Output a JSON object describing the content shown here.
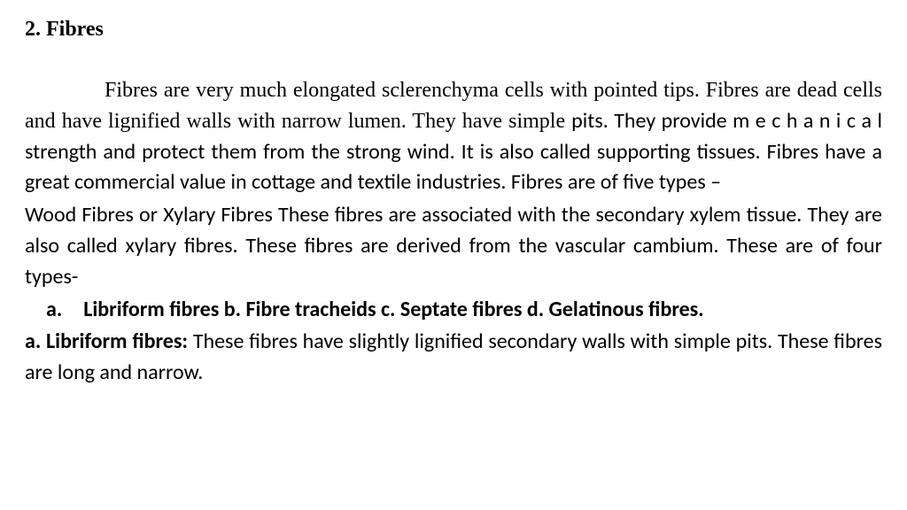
{
  "heading": "2. Fibres",
  "p1_a": "Fibres are very much elongated sclerenchyma cells with pointed tips. Fibres are dead cells and have lignified walls with narrow lumen. They have simple ",
  "p1_b": "pits. They provide m e c h a n i c a l strength and protect them from the strong wind. It is also called supporting tissues. Fibres have a great commercial value in cottage and textile industries. Fibres are of five types –",
  "p2": "Wood Fibres or Xylary Fibres These fibres are associated with the secondary xylem tissue. They are also called xylary fibres. These fibres are derived from the vascular cambium. These are of four types-",
  "list_line": "a. Libriform fibres b. Fibre  tracheids c. Septate fibres d. Gelatinous fibres.",
  "p3_label": "a. Libriform fibres: ",
  "p3_body": "These fibres have slightly lignified secondary walls with simple pits. These fibres are long and narrow."
}
